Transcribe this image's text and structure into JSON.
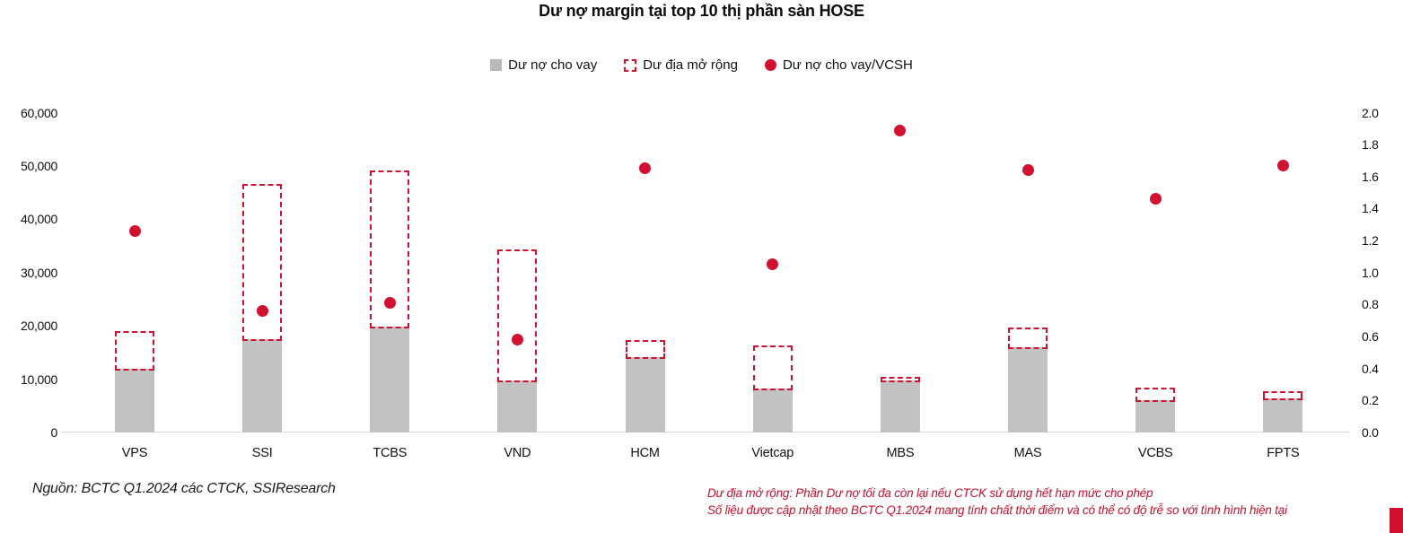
{
  "title": "Dư nợ margin tại top 10 thị phần sàn HOSE",
  "legend": {
    "items": [
      {
        "label": "Dư nợ cho vay",
        "swatch": "gray-square"
      },
      {
        "label": "Dư địa mở rộng",
        "swatch": "red-dashed-square"
      },
      {
        "label": "Dư nợ cho vay/VCSH",
        "swatch": "red-dot"
      }
    ]
  },
  "footer": {
    "source": "Nguồn: BCTC Q1.2024 các CTCK, SSIResearch",
    "note_line1": "Dư địa mở rộng: Phần Dư nợ tối đa còn lại nếu CTCK sử dụng hết hạn mức cho phép",
    "note_line2": "Số liệu được cập nhật theo BCTC Q1.2024 mang tính chất thời điểm và có thể có độ trễ so với tình hình hiện tại"
  },
  "colors": {
    "accent_red": "#d2102f",
    "bar_gray": "#c2c2c2",
    "axis_line_gray": "#d9d9d9",
    "text_black": "#111111"
  },
  "chart_data": {
    "type": "combo",
    "categories": [
      "VPS",
      "SSI",
      "TCBS",
      "VND",
      "HCM",
      "Vietcap",
      "MBS",
      "MAS",
      "VCBS",
      "FPTS"
    ],
    "series": [
      {
        "name": "Dư nợ cho vay",
        "type": "bar",
        "axis": "left",
        "values": [
          11900,
          17500,
          19900,
          9700,
          14100,
          8300,
          9800,
          16000,
          6000,
          6400
        ]
      },
      {
        "name": "Dư địa mở rộng",
        "type": "bar_outline_dashed",
        "axis": "left",
        "note": "values are tops of dashed boxes (loan value plus remaining headroom)",
        "values": [
          19100,
          46600,
          49200,
          34400,
          17300,
          16400,
          10500,
          19700,
          8400,
          7700
        ]
      },
      {
        "name": "Dư nợ cho vay/VCSH",
        "type": "scatter",
        "axis": "right",
        "values": [
          1.26,
          0.76,
          0.81,
          0.58,
          1.65,
          1.05,
          1.89,
          1.64,
          1.46,
          1.67
        ]
      }
    ],
    "left_axis": {
      "min": 0,
      "max": 60000,
      "tick_step": 10000,
      "tick_labels": [
        "0",
        "10,000",
        "20,000",
        "30,000",
        "40,000",
        "50,000",
        "60,000"
      ]
    },
    "right_axis": {
      "min": 0.0,
      "max": 2.0,
      "tick_step": 0.2,
      "tick_labels": [
        "0.0",
        "0.2",
        "0.4",
        "0.6",
        "0.8",
        "1.0",
        "1.2",
        "1.4",
        "1.6",
        "1.8",
        "2.0"
      ]
    },
    "grid": false,
    "legend_position": "top"
  }
}
